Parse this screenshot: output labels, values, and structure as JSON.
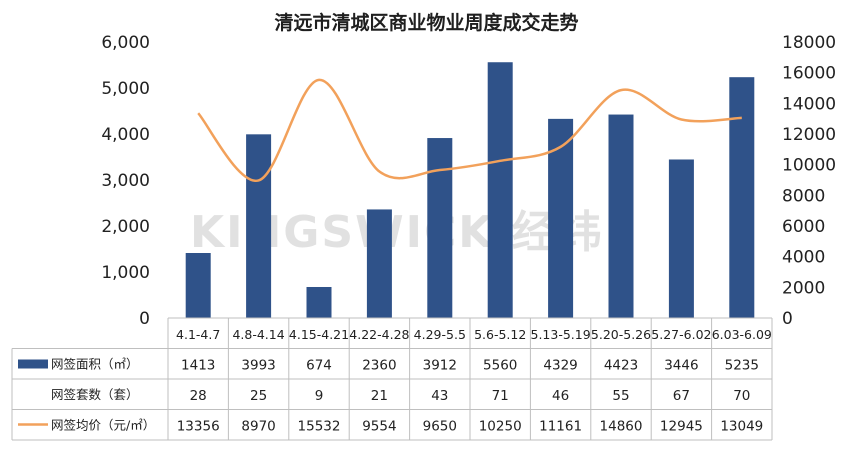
{
  "chart_data": {
    "type": "bar",
    "title": "清远市清城区商业物业周度成交走势",
    "categories": [
      "4.1-4.7",
      "4.8-4.14",
      "4.15-4.21",
      "4.22-4.28",
      "4.29-5.5",
      "5.6-5.12",
      "5.13-5.19",
      "5.20-5.26",
      "5.27-6.02",
      "6.03-6.09"
    ],
    "series": [
      {
        "name": "网签面积（㎡）",
        "type": "bar",
        "axis": "left",
        "color": "#2f5289",
        "values": [
          1413,
          3993,
          674,
          2360,
          3912,
          5560,
          4329,
          4423,
          3446,
          5235
        ]
      },
      {
        "name": "网签套数（套）",
        "type": "table-only",
        "values": [
          28,
          25,
          9,
          21,
          43,
          71,
          46,
          55,
          67,
          70
        ]
      },
      {
        "name": "网签均价（元/㎡）",
        "type": "line",
        "axis": "right",
        "color": "#f2a15b",
        "values": [
          13356,
          8970,
          15532,
          9554,
          9650,
          10250,
          11161,
          14860,
          12945,
          13049
        ]
      }
    ],
    "y_left": {
      "min": 0,
      "max": 6000,
      "ticks": [
        "0",
        "1,000",
        "2,000",
        "3,000",
        "4,000",
        "5,000",
        "6,000"
      ]
    },
    "y_right": {
      "min": 0,
      "max": 18000,
      "ticks": [
        "0",
        "2000",
        "4000",
        "6000",
        "8000",
        "10000",
        "12000",
        "14000",
        "16000",
        "18000"
      ]
    },
    "grid": false,
    "legend": "data-table-left"
  },
  "watermark": "KINGSWICK 经纬"
}
